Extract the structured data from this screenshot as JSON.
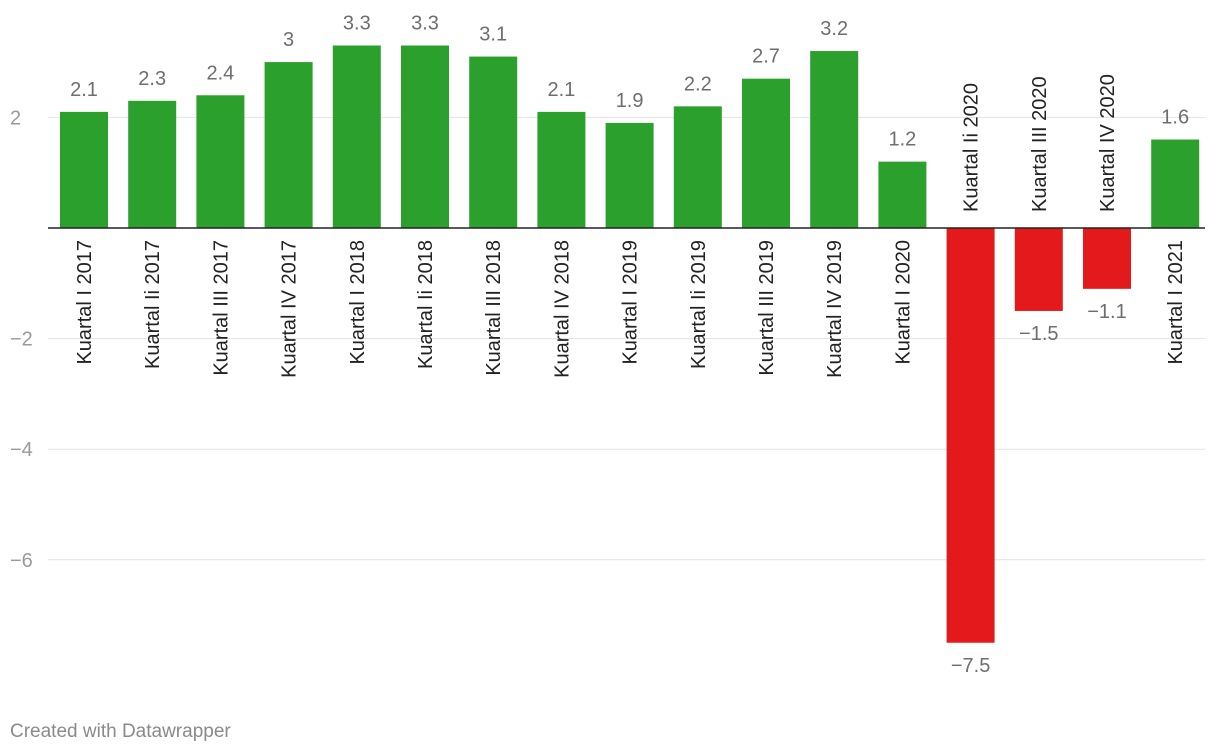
{
  "chart_data": {
    "type": "bar",
    "categories": [
      "Kuartal I 2017",
      "Kuartal Ii 2017",
      "Kuartal III 2017",
      "Kuartal IV 2017",
      "Kuartal I 2018",
      "Kuartal Ii 2018",
      "Kuartal III 2018",
      "Kuartal IV 2018",
      "Kuartal I 2019",
      "Kuartal Ii 2019",
      "Kuartal III 2019",
      "Kuartal IV 2019",
      "Kuartal I 2020",
      "Kuartal Ii 2020",
      "Kuartal III 2020",
      "Kuartal IV 2020",
      "Kuartal I 2021"
    ],
    "values": [
      2.1,
      2.3,
      2.4,
      3,
      3.3,
      3.3,
      3.1,
      2.1,
      1.9,
      2.2,
      2.7,
      3.2,
      1.2,
      -7.5,
      -1.5,
      -1.1,
      1.6
    ],
    "value_labels": [
      "2.1",
      "2.3",
      "2.4",
      "3",
      "3.3",
      "3.3",
      "3.1",
      "2.1",
      "1.9",
      "2.2",
      "2.7",
      "3.2",
      "1.2",
      "−7.5",
      "−1.5",
      "−1.1",
      "1.6"
    ],
    "yticks": [
      {
        "value": 2,
        "label": "2"
      },
      {
        "value": -2,
        "label": "−2"
      },
      {
        "value": -4,
        "label": "−4"
      },
      {
        "value": -6,
        "label": "−6"
      }
    ],
    "ylim": [
      -8.2,
      4
    ],
    "grid": true,
    "colors": {
      "positive": "#2ca02c",
      "negative": "#e3191c"
    },
    "title": "",
    "xlabel": "",
    "ylabel": ""
  },
  "footer": {
    "credit": "Created with Datawrapper"
  }
}
